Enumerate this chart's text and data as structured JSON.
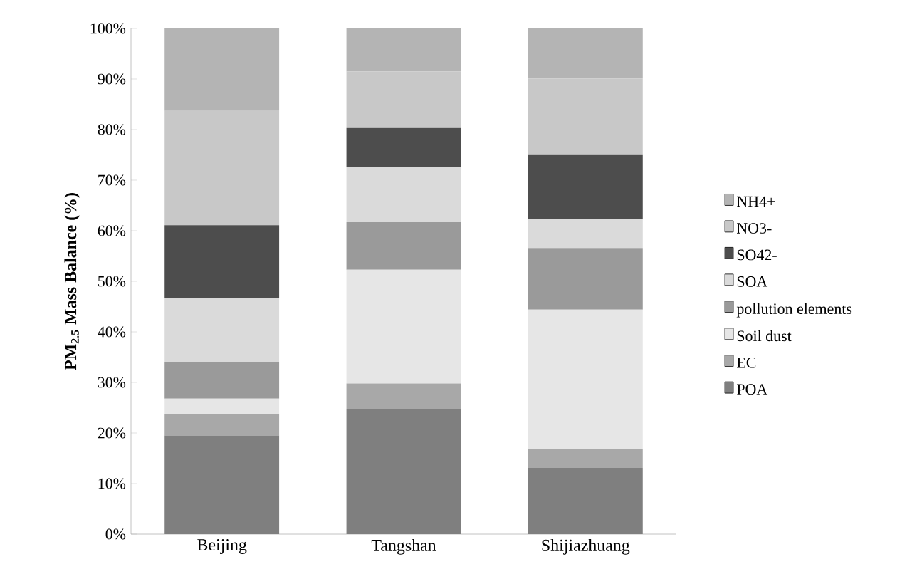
{
  "chart_data": {
    "type": "bar",
    "stacked": true,
    "ylabel": "PM$_{2.5}$ Mass Balance (%)",
    "categories": [
      "Beijing",
      "Tangshan",
      "Shijiazhuang"
    ],
    "ylim": [
      0,
      100
    ],
    "yticks": [
      {
        "value": 0,
        "label": "0%"
      },
      {
        "value": 10,
        "label": "10%"
      },
      {
        "value": 20,
        "label": "20%"
      },
      {
        "value": 30,
        "label": "30%"
      },
      {
        "value": 40,
        "label": "40%"
      },
      {
        "value": 50,
        "label": "50%"
      },
      {
        "value": 60,
        "label": "60%"
      },
      {
        "value": 70,
        "label": "70%"
      },
      {
        "value": 80,
        "label": "80%"
      },
      {
        "value": 90,
        "label": "90%"
      },
      {
        "value": 100,
        "label": "100%"
      }
    ],
    "legend": "right",
    "grid": false,
    "series": [
      {
        "name": "POA",
        "color": "#7f7f7f",
        "values": [
          19.5,
          24.7,
          13.1
        ]
      },
      {
        "name": "EC",
        "color": "#a8a8a8",
        "values": [
          4.2,
          5.1,
          3.8
        ]
      },
      {
        "name": "Soil dust",
        "color": "#e6e6e6",
        "values": [
          3.1,
          22.5,
          27.5
        ]
      },
      {
        "name": "pollution elements",
        "color": "#9a9a9a",
        "values": [
          7.3,
          9.4,
          12.2
        ]
      },
      {
        "name": "SOA",
        "color": "#dadada",
        "values": [
          12.6,
          10.9,
          5.8
        ]
      },
      {
        "name": "SO42-",
        "color": "#4d4d4d",
        "values": [
          14.4,
          7.7,
          12.7
        ]
      },
      {
        "name": "NO3-",
        "color": "#c8c8c8",
        "values": [
          22.6,
          11.2,
          15.0
        ]
      },
      {
        "name": "NH4+",
        "color": "#b4b4b4",
        "values": [
          16.3,
          8.5,
          9.9
        ]
      }
    ]
  }
}
